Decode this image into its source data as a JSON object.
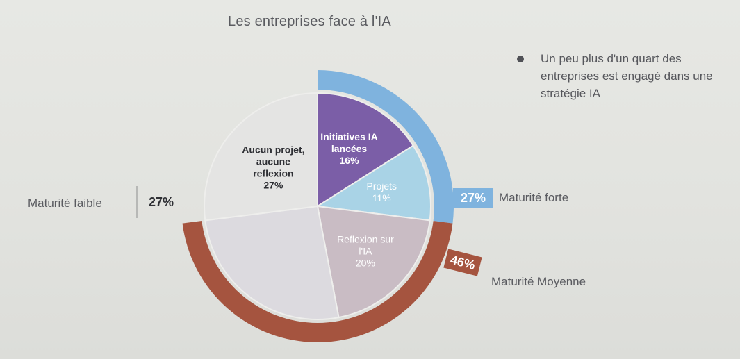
{
  "chart_data": {
    "type": "pie",
    "title": "Les entreprises face à l'IA",
    "inner_slices": [
      {
        "label_lines": [
          "Initiatives IA",
          "lancées",
          "16%"
        ],
        "value": 16,
        "color": "#7b5ea7",
        "text_color": "#ffffff"
      },
      {
        "label_lines": [
          "Projets",
          "11%"
        ],
        "value": 11,
        "color": "#a9d3e6",
        "text_color": "#ffffff"
      },
      {
        "label_lines": [
          "Reflexion sur",
          "l'IA",
          "20%"
        ],
        "value": 20,
        "color": "#c9bcc4",
        "text_color": "#ffffff"
      },
      {
        "label_lines": [],
        "value": 26,
        "color": "#dcdadf",
        "text_color": "#ffffff"
      },
      {
        "label_lines": [
          "Aucun projet,",
          "aucune",
          "reflexion",
          "27%"
        ],
        "value": 27,
        "color": "#e4e4e3",
        "text_color": "#2f3035"
      }
    ],
    "outer_rings": [
      {
        "label": "Maturité forte",
        "value_text": "27%",
        "value": 27,
        "color": "#7fb3de"
      },
      {
        "label": "Maturité Moyenne",
        "value_text": "46%",
        "value": 46,
        "color": "#a5543f"
      },
      {
        "label": "Maturité faible",
        "value_text": "27%",
        "value": 27,
        "color": "#d9d9d7"
      }
    ]
  },
  "note": {
    "text": "Un peu plus d'un quart des entreprises est engagé dans une stratégie IA"
  },
  "legend": {
    "forte_label": "Maturité forte",
    "forte_value": "27%",
    "moyenne_label": "Maturité Moyenne",
    "moyenne_value": "46%",
    "faible_label": "Maturité faible",
    "faible_value": "27%"
  }
}
